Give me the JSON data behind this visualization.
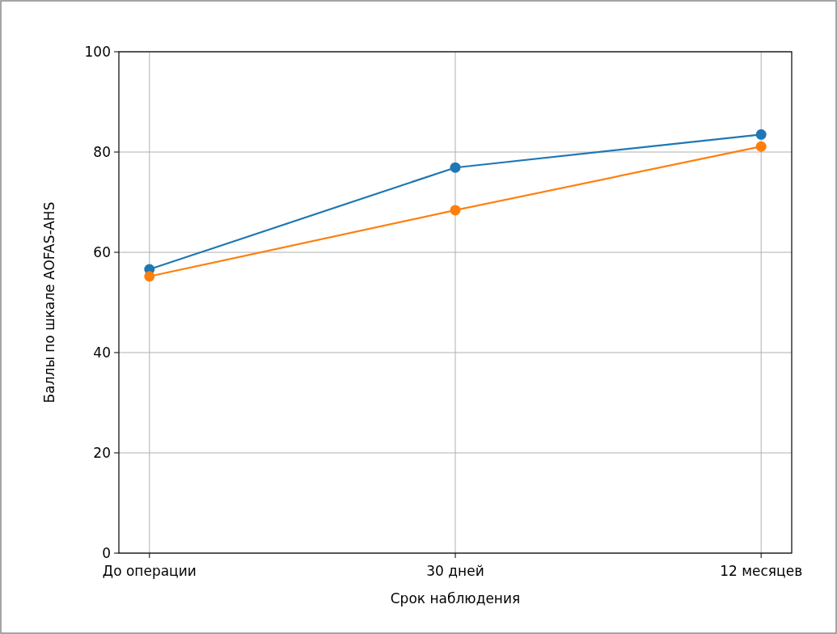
{
  "chart_data": {
    "type": "line",
    "xlabel": "Срок наблюдения",
    "ylabel": "Баллы по шкале AOFAS-AHS",
    "categories": [
      "До операции",
      "30 дней",
      "12 месяцев"
    ],
    "series": [
      {
        "color": "#1f77b4",
        "values": [
          56.6,
          76.9,
          83.5
        ]
      },
      {
        "color": "#ff7f0e",
        "values": [
          55.2,
          68.4,
          81.1
        ]
      }
    ],
    "ylim": [
      0,
      100
    ],
    "yticks": [
      0,
      20,
      40,
      60,
      80,
      100
    ],
    "grid": true,
    "marker": "circle",
    "line_style": "solid"
  }
}
